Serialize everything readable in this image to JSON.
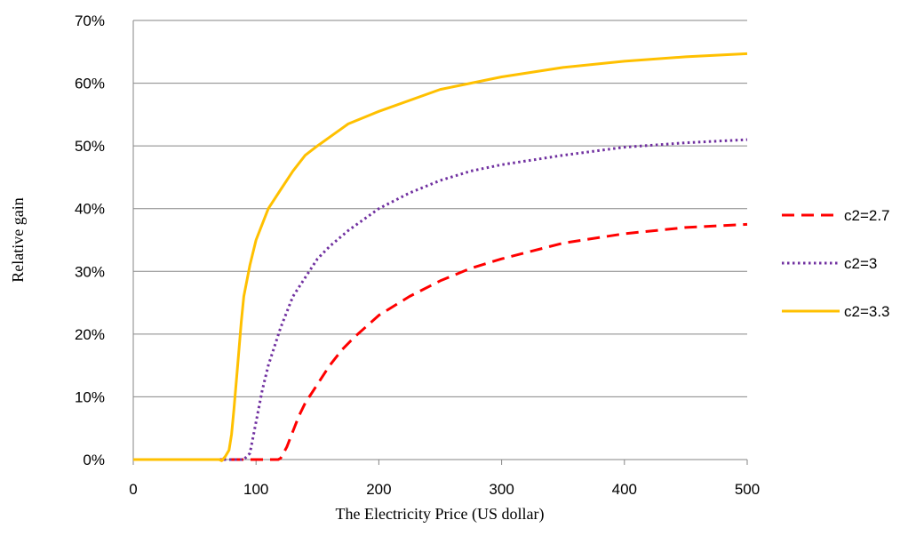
{
  "chart_data": {
    "type": "line",
    "title": "",
    "xlabel": "The Electricity Price (US dollar)",
    "ylabel": "Relative gain",
    "xlim": [
      0,
      500
    ],
    "ylim": [
      0,
      0.7
    ],
    "x_ticks": [
      "0",
      "100",
      "200",
      "300",
      "400",
      "500"
    ],
    "x_tick_values": [
      0,
      100,
      200,
      300,
      400,
      500
    ],
    "y_ticks": [
      "0%",
      "10%",
      "20%",
      "30%",
      "40%",
      "50%",
      "60%",
      "70%"
    ],
    "y_tick_values": [
      0,
      0.1,
      0.2,
      0.3,
      0.4,
      0.5,
      0.6,
      0.7
    ],
    "grid": "horizontal",
    "legend_position": "right",
    "series": [
      {
        "name": "c2=2.7",
        "color": "#ff0000",
        "style": "dashed",
        "x": [
          0,
          50,
          100,
          118,
          120,
          125,
          130,
          135,
          140,
          150,
          160,
          170,
          180,
          200,
          225,
          250,
          275,
          300,
          350,
          400,
          450,
          500
        ],
        "y": [
          0,
          0,
          0,
          0,
          0.002,
          0.02,
          0.045,
          0.07,
          0.09,
          0.12,
          0.15,
          0.175,
          0.195,
          0.23,
          0.26,
          0.285,
          0.305,
          0.32,
          0.345,
          0.36,
          0.37,
          0.375
        ]
      },
      {
        "name": "c2=3",
        "color": "#7030a0",
        "style": "dotted",
        "x": [
          0,
          50,
          90,
          95,
          100,
          105,
          110,
          115,
          120,
          130,
          140,
          150,
          160,
          175,
          200,
          225,
          250,
          275,
          300,
          350,
          400,
          450,
          500
        ],
        "y": [
          0,
          0,
          0,
          0.01,
          0.06,
          0.11,
          0.15,
          0.18,
          0.21,
          0.26,
          0.29,
          0.32,
          0.34,
          0.365,
          0.4,
          0.425,
          0.445,
          0.46,
          0.47,
          0.485,
          0.498,
          0.505,
          0.51
        ]
      },
      {
        "name": "c2=3.3",
        "color": "#ffc000",
        "style": "solid",
        "x": [
          0,
          50,
          70,
          72,
          75,
          78,
          80,
          82,
          85,
          88,
          90,
          95,
          100,
          110,
          120,
          130,
          140,
          150,
          175,
          200,
          250,
          300,
          350,
          400,
          450,
          500
        ],
        "y": [
          0,
          0,
          0,
          -0.002,
          0.005,
          0.015,
          0.04,
          0.08,
          0.15,
          0.22,
          0.26,
          0.31,
          0.35,
          0.4,
          0.43,
          0.46,
          0.485,
          0.5,
          0.535,
          0.555,
          0.59,
          0.61,
          0.625,
          0.635,
          0.642,
          0.647
        ]
      }
    ]
  }
}
